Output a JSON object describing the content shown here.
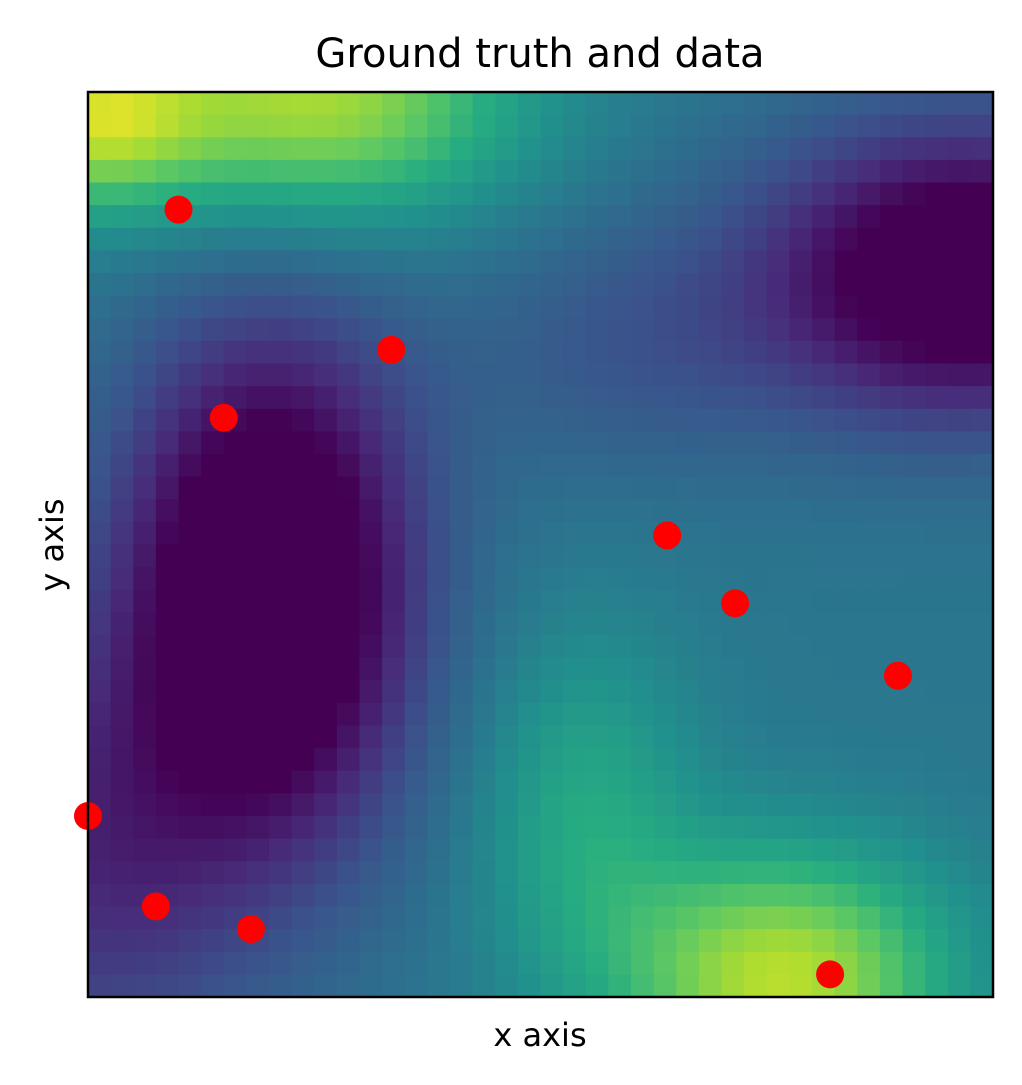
{
  "chart_data": {
    "type": "heatmap",
    "title": "Ground truth and data",
    "xlabel": "x axis",
    "ylabel": "y axis",
    "xlim": [
      0,
      1
    ],
    "ylim": [
      0,
      1
    ],
    "grid": false,
    "colormap": "viridis",
    "grid_cells": 40,
    "ticks_shown": false,
    "field_peaks": [
      {
        "x": 0.28,
        "y": 0.98,
        "level": 0.85
      },
      {
        "x": 0.0,
        "y": 0.97,
        "level": 0.78
      },
      {
        "x": 0.78,
        "y": 0.02,
        "level": 0.88
      },
      {
        "x": 0.45,
        "y": 0.15,
        "level": 0.6
      }
    ],
    "field_troughs": [
      {
        "x": 0.22,
        "y": 0.45,
        "level": 0.0
      },
      {
        "x": 0.98,
        "y": 0.82,
        "level": 0.0
      }
    ],
    "scatter": {
      "color": "#ff0000",
      "points": [
        {
          "x": 0.1,
          "y": 0.87
        },
        {
          "x": 0.335,
          "y": 0.715
        },
        {
          "x": 0.15,
          "y": 0.64
        },
        {
          "x": 0.64,
          "y": 0.51
        },
        {
          "x": 0.715,
          "y": 0.435
        },
        {
          "x": 0.895,
          "y": 0.355
        },
        {
          "x": 0.0,
          "y": 0.2
        },
        {
          "x": 0.075,
          "y": 0.1
        },
        {
          "x": 0.18,
          "y": 0.075
        },
        {
          "x": 0.82,
          "y": 0.025
        }
      ]
    }
  }
}
